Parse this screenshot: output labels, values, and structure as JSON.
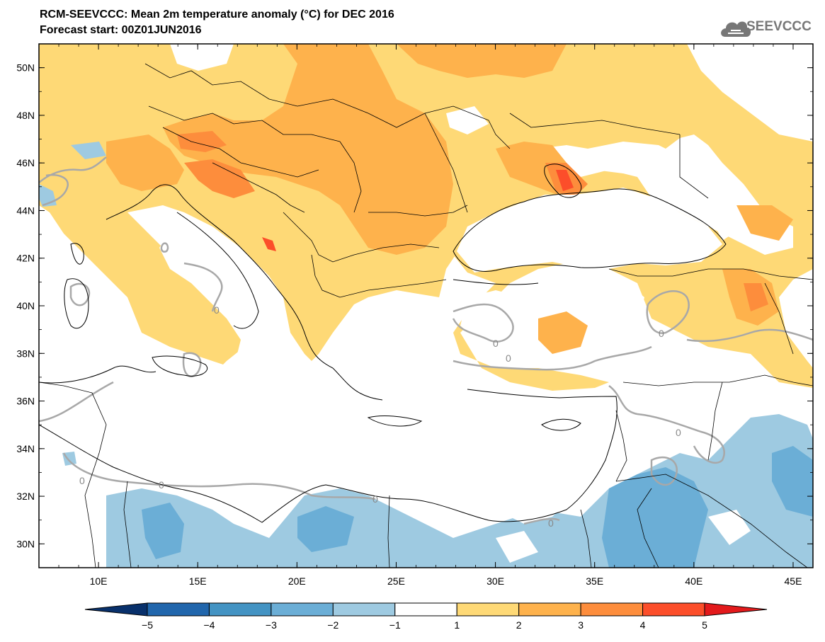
{
  "title": "RCM-SEEVCCC: Mean 2m temperature anomaly (°C) for DEC 2016",
  "subtitle": "Forecast start: 00Z01JUN2016",
  "logo": {
    "text": "SEEVCCC",
    "icon": "cloud-icon"
  },
  "map": {
    "lon_range": [
      7,
      46
    ],
    "lat_range": [
      29,
      51
    ],
    "lat_ticks": [
      "30N",
      "32N",
      "34N",
      "36N",
      "38N",
      "40N",
      "42N",
      "44N",
      "46N",
      "48N",
      "50N"
    ],
    "lon_ticks": [
      "10E",
      "15E",
      "20E",
      "25E",
      "30E",
      "35E",
      "40E",
      "45E"
    ],
    "contour_label": "0"
  },
  "colorbar": {
    "labels": [
      "−5",
      "−4",
      "−3",
      "−2",
      "−1",
      "1",
      "2",
      "3",
      "4",
      "5"
    ],
    "colors": [
      "#08306b",
      "#2166ac",
      "#4393c3",
      "#6baed6",
      "#9ecae1",
      "#ffffff",
      "#fed976",
      "#feb24c",
      "#fd8d3c",
      "#fc4e2a",
      "#e31a1c"
    ]
  },
  "colors": {
    "anom_1_2": "#fed976",
    "anom_2_3": "#feb24c",
    "anom_3_4": "#fd8d3c",
    "anom_4_5": "#fc4e2a",
    "anom_m1_m2": "#9ecae1",
    "anom_m2_m3": "#6baed6",
    "contour_zero": "#a8a8a8",
    "coast": "#000000"
  }
}
